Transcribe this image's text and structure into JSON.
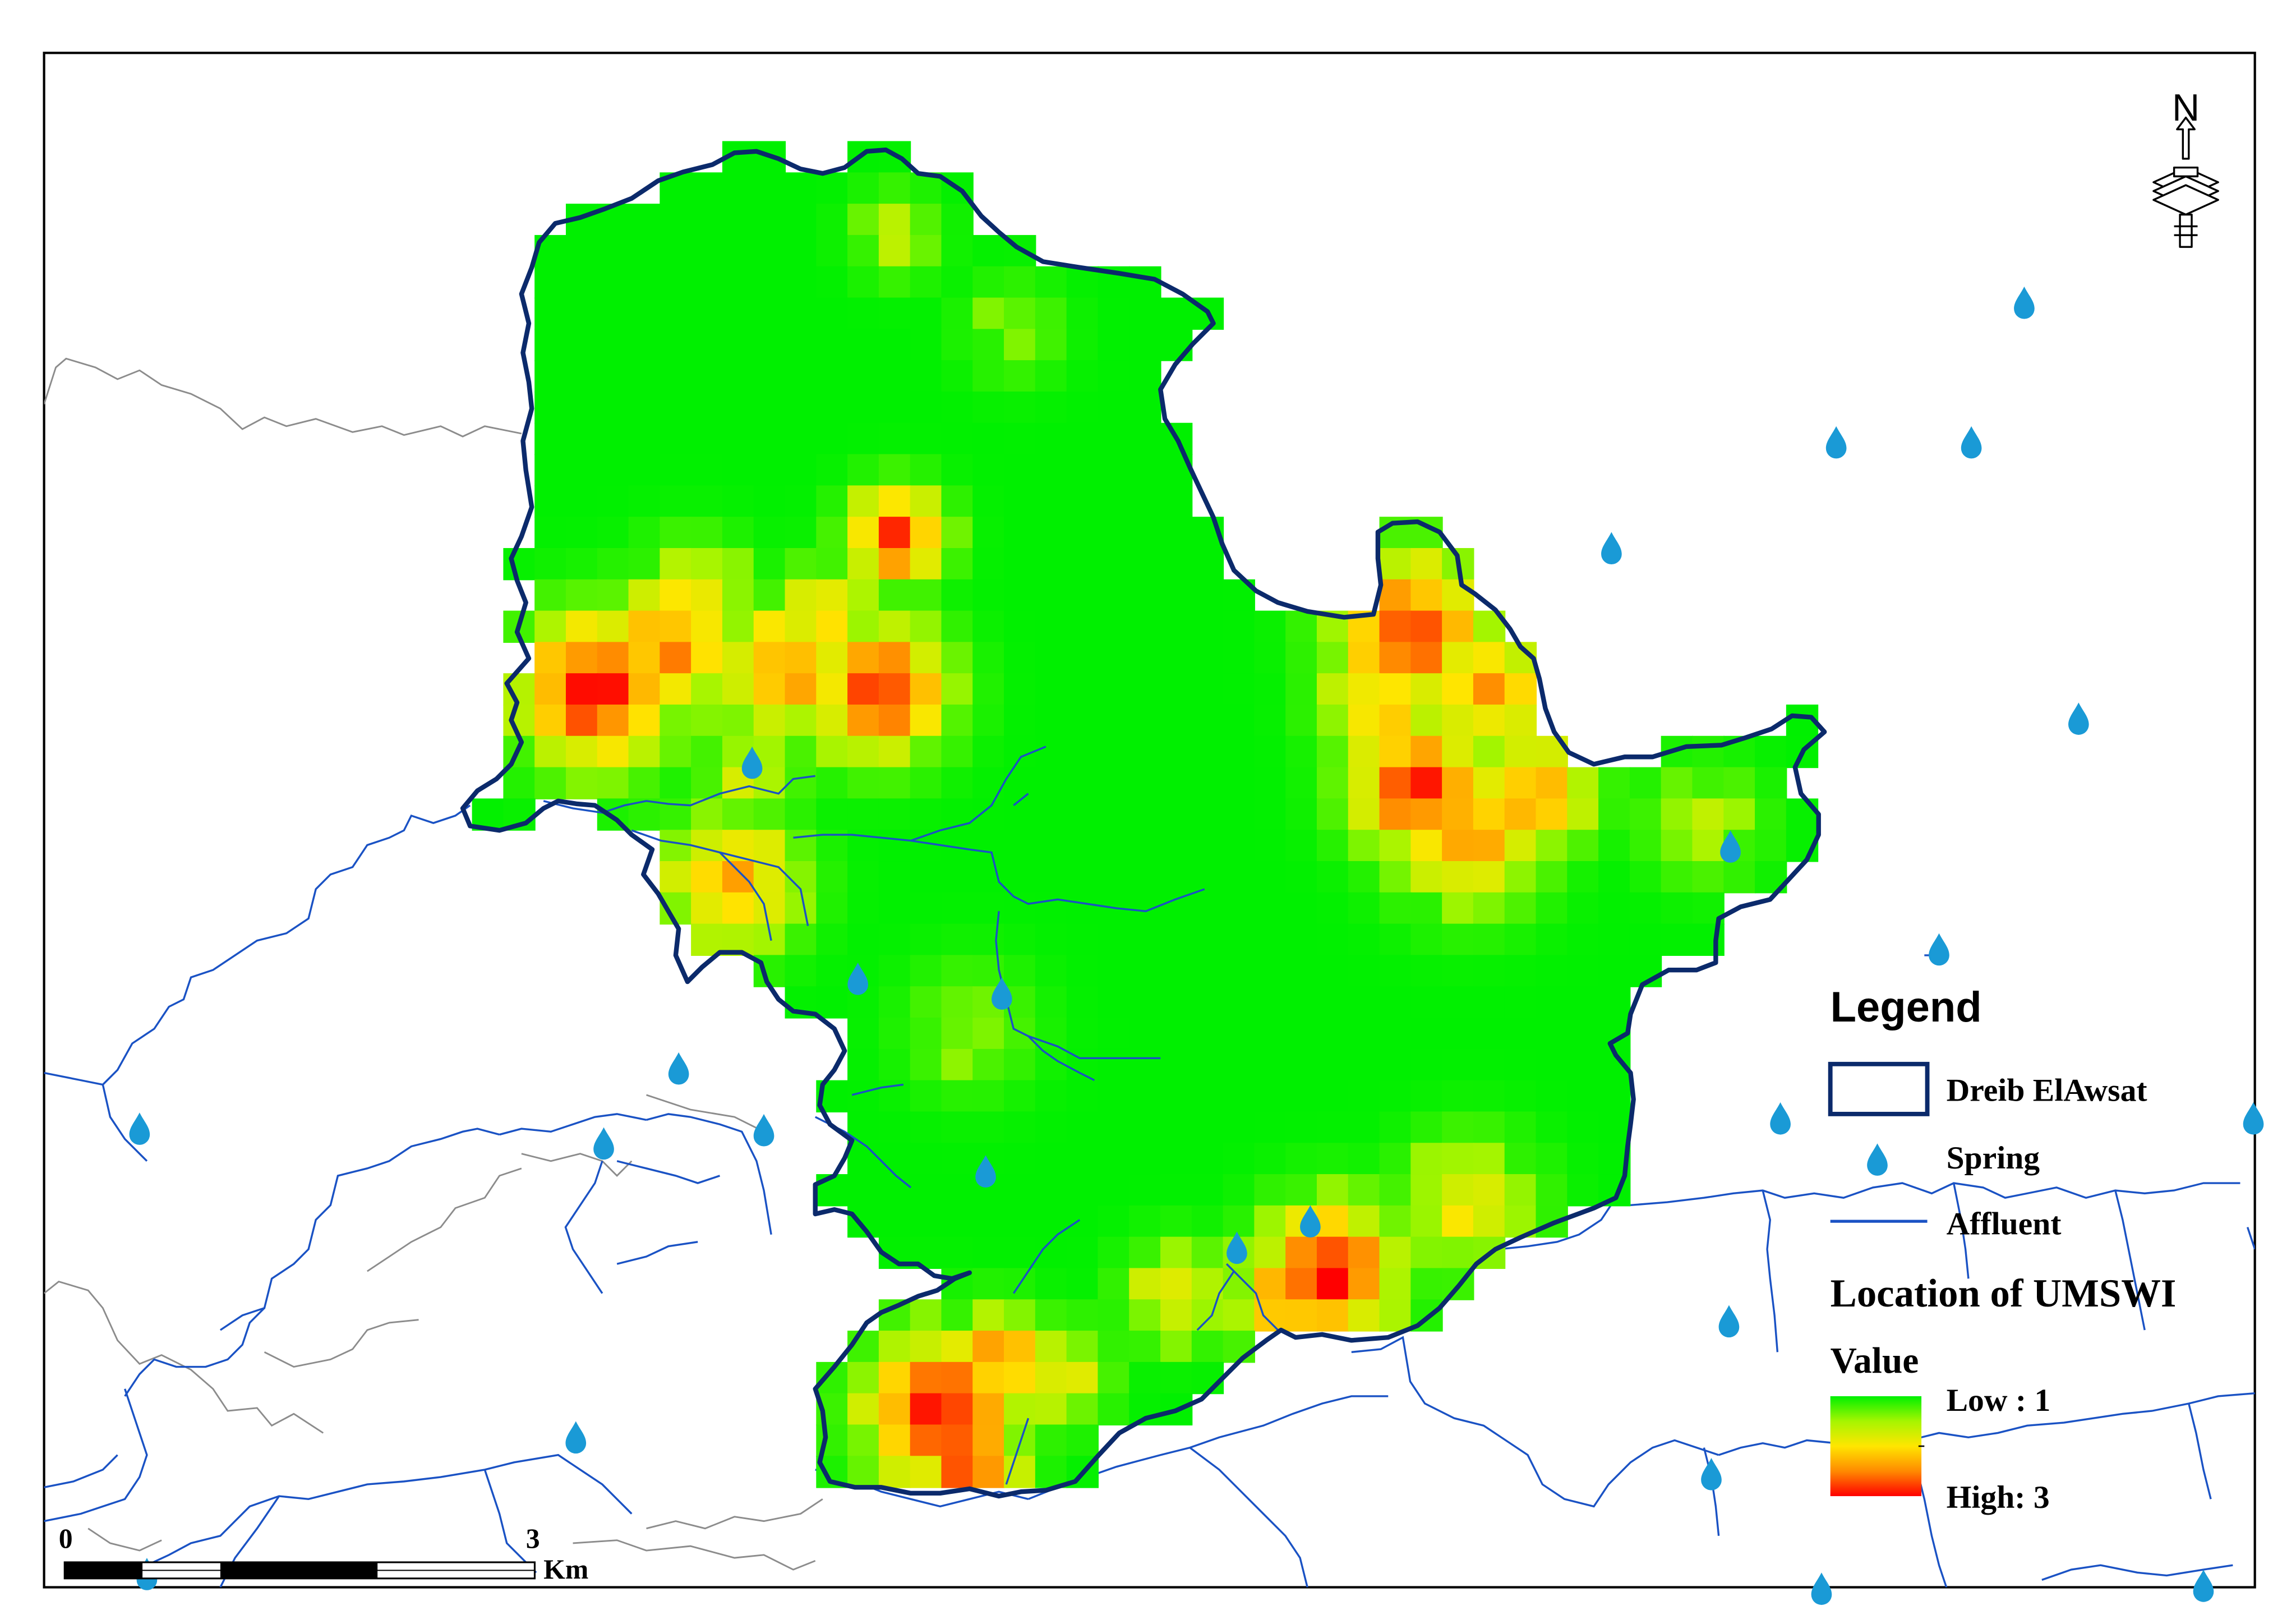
{
  "legend": {
    "title": "Legend",
    "boundary_label": "Dreib ElAwsat",
    "spring_label": "Spring",
    "affluent_label": "Affluent",
    "layer_title": "Location of UMSWI",
    "value_label": "Value",
    "low_label": "Low : 1",
    "high_label": "High: 3"
  },
  "scale_bar": {
    "start": "0",
    "end": "3",
    "unit": "Km"
  },
  "north_arrow": {
    "letter": "N"
  },
  "colors": {
    "boundary": "#0b2a6b",
    "affluent": "#1a52c4",
    "spring": "#1a9ad6",
    "neighbor_line": "#8c8c8c",
    "low": "#00f000",
    "high": "#ff0000"
  },
  "icons": {
    "spring": "water-drop-icon",
    "north": "north-arrow-icon"
  },
  "umswi": {
    "min": 1,
    "max": 3
  }
}
